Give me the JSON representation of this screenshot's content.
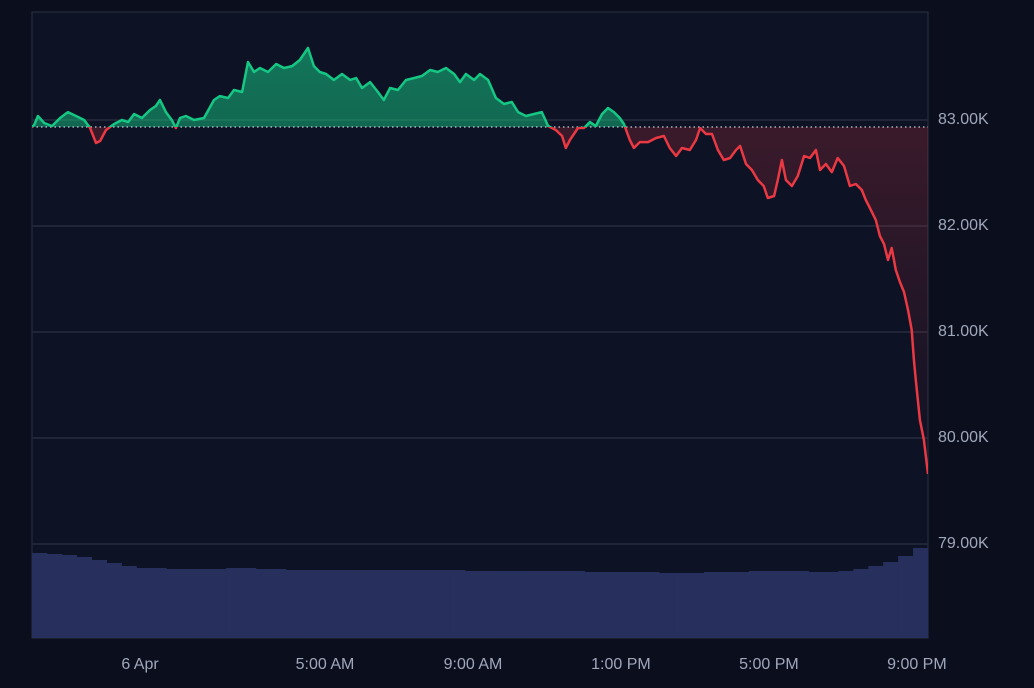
{
  "chart_data": {
    "type": "line",
    "x": [
      -2.92,
      -2.86,
      -2.76,
      -2.59,
      -2.38,
      -2.16,
      -1.95,
      -1.73,
      -1.51,
      -1.35,
      -1.19,
      -1.08,
      -0.92,
      -0.7,
      -0.49,
      -0.32,
      -0.16,
      0.05,
      0.27,
      0.43,
      0.54,
      0.7,
      0.86,
      0.97,
      1.08,
      1.24,
      1.46,
      1.73,
      2.0,
      2.16,
      2.38,
      2.54,
      2.76,
      2.92,
      3.08,
      3.24,
      3.46,
      3.68,
      3.89,
      4.11,
      4.32,
      4.54,
      4.7,
      4.86,
      5.03,
      5.24,
      5.46,
      5.68,
      5.84,
      6.0,
      6.22,
      6.43,
      6.59,
      6.76,
      6.97,
      7.19,
      7.41,
      7.62,
      7.84,
      8.05,
      8.27,
      8.49,
      8.65,
      8.81,
      9.03,
      9.19,
      9.41,
      9.62,
      9.84,
      10.05,
      10.22,
      10.43,
      10.65,
      10.86,
      11.03,
      11.24,
      11.41,
      11.51,
      11.62,
      11.84,
      12.0,
      12.16,
      12.32,
      12.49,
      12.65,
      12.81,
      12.97,
      13.08,
      13.24,
      13.35,
      13.51,
      13.73,
      13.95,
      14.16,
      14.32,
      14.49,
      14.65,
      14.86,
      15.03,
      15.14,
      15.3,
      15.46,
      15.62,
      15.78,
      15.95,
      16.11,
      16.22,
      16.38,
      16.54,
      16.7,
      16.86,
      16.97,
      17.14,
      17.24,
      17.35,
      17.46,
      17.62,
      17.78,
      17.95,
      18.11,
      18.27,
      18.38,
      18.54,
      18.7,
      18.86,
      19.03,
      19.19,
      19.35,
      19.51,
      19.62,
      19.73,
      19.89,
      20.0,
      20.11,
      20.22,
      20.32,
      20.43,
      20.54,
      20.65,
      20.76,
      20.86,
      20.92,
      20.97,
      21.08,
      21.19,
      21.3
    ],
    "values": [
      82934,
      82953,
      83038,
      82972,
      82943,
      83019,
      83075,
      83038,
      83000,
      82925,
      82783,
      82802,
      82906,
      82962,
      83000,
      82981,
      83057,
      83019,
      83094,
      83132,
      83189,
      83075,
      83000,
      82925,
      83019,
      83038,
      83000,
      83019,
      83189,
      83226,
      83208,
      83283,
      83264,
      83547,
      83453,
      83491,
      83453,
      83528,
      83491,
      83509,
      83566,
      83679,
      83509,
      83453,
      83434,
      83377,
      83434,
      83377,
      83396,
      83302,
      83358,
      83264,
      83189,
      83302,
      83283,
      83377,
      83396,
      83415,
      83472,
      83453,
      83491,
      83434,
      83358,
      83434,
      83377,
      83434,
      83377,
      83208,
      83151,
      83170,
      83075,
      83038,
      83057,
      83075,
      82943,
      82906,
      82849,
      82736,
      82811,
      82925,
      82925,
      82981,
      82943,
      83057,
      83113,
      83075,
      83019,
      82962,
      82811,
      82736,
      82792,
      82792,
      82830,
      82849,
      82736,
      82660,
      82736,
      82717,
      82811,
      82925,
      82868,
      82868,
      82717,
      82623,
      82642,
      82717,
      82755,
      82585,
      82528,
      82434,
      82377,
      82264,
      82283,
      82434,
      82623,
      82434,
      82377,
      82472,
      82660,
      82642,
      82717,
      82528,
      82585,
      82509,
      82642,
      82566,
      82377,
      82396,
      82340,
      82245,
      82170,
      82057,
      81906,
      81830,
      81679,
      81792,
      81585,
      81472,
      81377,
      81208,
      81019,
      80736,
      80547,
      80170,
      79981,
      79660
    ],
    "baseline": 82934,
    "up_color": "#16c784",
    "down_color": "#ea3943",
    "xlim": [
      -2.92,
      21.3
    ],
    "ylim": [
      78113,
      84019
    ],
    "xticks": [
      {
        "value": 0,
        "label": "6 Apr"
      },
      {
        "value": 5,
        "label": "5:00 AM"
      },
      {
        "value": 9,
        "label": "9:00 AM"
      },
      {
        "value": 13,
        "label": "1:00 PM"
      },
      {
        "value": 17,
        "label": "5:00 PM"
      },
      {
        "value": 21,
        "label": "9:00 PM"
      }
    ],
    "yticks": [
      {
        "value": 79000,
        "label": "79.00K"
      },
      {
        "value": 80000,
        "label": "80.00K"
      },
      {
        "value": 81000,
        "label": "81.00K"
      },
      {
        "value": 82000,
        "label": "82.00K"
      },
      {
        "value": 83000,
        "label": "83.00K"
      }
    ],
    "grid": true,
    "volume": {
      "color": "#27305c",
      "values": [
        85,
        84,
        83,
        81,
        78,
        75,
        72,
        70,
        70,
        69,
        69,
        69,
        69,
        70,
        70,
        69,
        69,
        68,
        68,
        68,
        68,
        68,
        68,
        68,
        68,
        68,
        68,
        68,
        68,
        67,
        67,
        67,
        67,
        67,
        67,
        67,
        67,
        66,
        66,
        66,
        66,
        66,
        65,
        65,
        65,
        66,
        66,
        66,
        67,
        67,
        67,
        67,
        66,
        66,
        67,
        69,
        72,
        76,
        82,
        90
      ]
    }
  }
}
